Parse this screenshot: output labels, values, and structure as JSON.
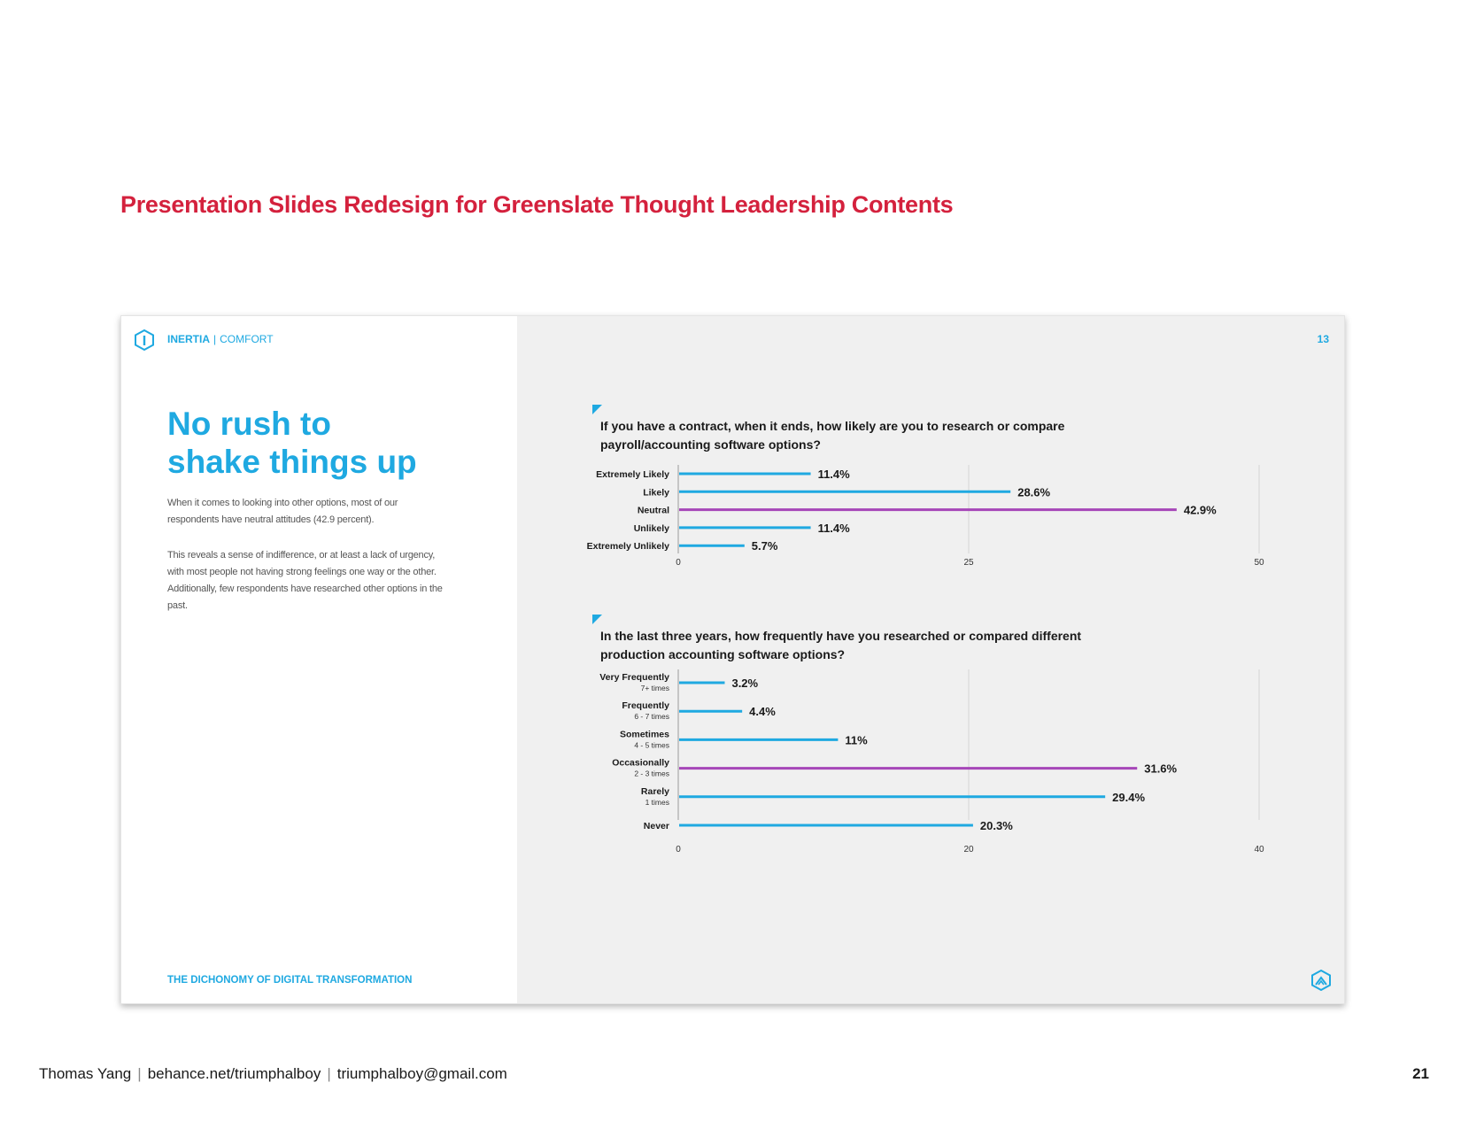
{
  "page_heading": "Presentation Slides Redesign for Greenslate Thought Leadership Contents",
  "slide": {
    "section_primary": "INERTIA",
    "section_separator": "|",
    "section_secondary": "COMFORT",
    "title_line1": "No rush to",
    "title_line2": "shake things up",
    "paragraph1": "When it comes to looking into other options, most of our respondents have neutral attitudes (42.9 percent).",
    "paragraph2": "This reveals a sense of indifference, or at least a lack of urgency, with most people not having strong feelings one way or the other. Additionally, few respondents have researched other options in the past.",
    "footer_title": "THE DICHONOMY OF DIGITAL TRANSFORMATION",
    "slide_number": "13"
  },
  "colors": {
    "accent": "#1fa9e1",
    "highlight": "#a646b8",
    "heading_red": "#d4213d"
  },
  "chart_data": [
    {
      "type": "bar",
      "orientation": "horizontal",
      "title": "If you have a contract, when it ends, how likely are you to research or compare payroll/accounting software options?",
      "categories": [
        "Extremely Likely",
        "Likely",
        "Neutral",
        "Unlikely",
        "Extremely Unlikely"
      ],
      "sublabels": [
        "",
        "",
        "",
        "",
        ""
      ],
      "values": [
        11.4,
        28.6,
        42.9,
        11.4,
        5.7
      ],
      "value_labels": [
        "11.4%",
        "28.6%",
        "42.9%",
        "11.4%",
        "5.7%"
      ],
      "highlight_index": 2,
      "xlim": [
        0,
        50
      ],
      "ticks": [
        0,
        25,
        50
      ],
      "tick_labels": [
        "0",
        "25",
        "50"
      ],
      "grid": true
    },
    {
      "type": "bar",
      "orientation": "horizontal",
      "title": "In the last three years, how frequently have you researched or compared different production accounting software options?",
      "categories": [
        "Very Frequently",
        "Frequently",
        "Sometimes",
        "Occasionally",
        "Rarely",
        "Never"
      ],
      "sublabels": [
        "7+ times",
        "6 - 7 times",
        "4 - 5 times",
        "2 - 3 times",
        "1 times",
        ""
      ],
      "values": [
        3.2,
        4.4,
        11,
        31.6,
        29.4,
        20.3
      ],
      "value_labels": [
        "3.2%",
        "4.4%",
        "11%",
        "31.6%",
        "29.4%",
        "20.3%"
      ],
      "highlight_index": 3,
      "xlim": [
        0,
        40
      ],
      "ticks": [
        0,
        20,
        40
      ],
      "tick_labels": [
        "0",
        "20",
        "40"
      ],
      "grid": true
    }
  ],
  "footer": {
    "name": "Thomas Yang",
    "separator": "|",
    "website": "behance.net/triumphalboy",
    "email": "triumphalboy@gmail.com",
    "page_number": "21"
  }
}
